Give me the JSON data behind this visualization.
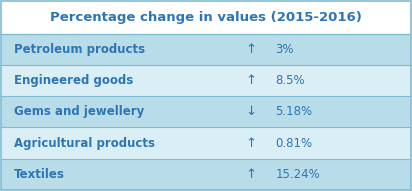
{
  "title": "Percentage change in values (2015-2016)",
  "title_color": "#2e75b6",
  "title_fontsize": 9.5,
  "rows": [
    {
      "label": "Petroleum products",
      "arrow": "↑",
      "value": "3%"
    },
    {
      "label": "Engineered goods",
      "arrow": "↑",
      "value": "8.5%"
    },
    {
      "label": "Gems and jewellery",
      "arrow": "↓",
      "value": "5.18%"
    },
    {
      "label": "Agricultural products",
      "arrow": "↑",
      "value": "0.81%"
    },
    {
      "label": "Textiles",
      "arrow": "↑",
      "value": "15.24%"
    }
  ],
  "row_bg_dark": "#b8dce8",
  "row_bg_light": "#daeef5",
  "header_bg": "#ffffff",
  "border_color": "#7fbcd2",
  "text_color": "#2e75b6",
  "label_fontsize": 8.5,
  "value_fontsize": 8.5,
  "fig_bg": "#ffffff"
}
